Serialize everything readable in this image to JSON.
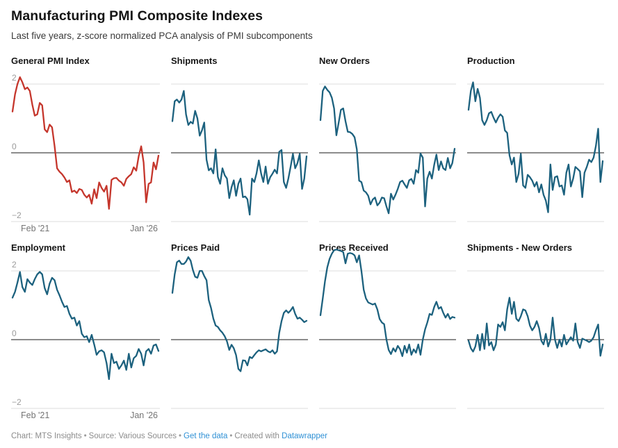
{
  "header": {
    "title": "Manufacturing PMI Composite Indexes",
    "subtitle": "Last five years, z-score normalized PCA analysis of PMI subcomponents"
  },
  "axis": {
    "y_ticks": [
      "2",
      "0",
      "−2"
    ],
    "x_start": "Feb '21",
    "x_end": "Jan '26"
  },
  "colors": {
    "highlight_line": "#c5362c",
    "default_line": "#1c617e",
    "grid_line": "#dcdcdc",
    "zero_line": "#1a1a1a",
    "link": "#2e90d5"
  },
  "footer": {
    "chart_credit": "Chart: MTS Insights",
    "separator": "•",
    "source": "Source: Various Sources",
    "get_data": "Get the data",
    "created_with": "Created with",
    "brand": "Datawrapper"
  },
  "chart_data": [
    {
      "type": "line",
      "title": "General PMI Index",
      "color": "#c5362c",
      "x_start": "Feb '21",
      "x_end": "Jan '26",
      "ylim": [
        -2,
        2
      ],
      "y_gridlines": [
        2,
        0,
        -2
      ],
      "values": [
        1.2,
        1.7,
        2.0,
        2.2,
        2.05,
        1.85,
        1.9,
        1.8,
        1.4,
        1.08,
        1.12,
        1.45,
        1.38,
        0.68,
        0.6,
        0.82,
        0.74,
        0.2,
        -0.45,
        -0.55,
        -0.62,
        -0.72,
        -0.85,
        -0.8,
        -1.14,
        -1.1,
        -1.17,
        -1.05,
        -1.08,
        -1.22,
        -1.3,
        -1.22,
        -1.48,
        -1.06,
        -1.32,
        -0.86,
        -1.02,
        -1.13,
        -0.96,
        -1.63,
        -0.79,
        -0.74,
        -0.73,
        -0.81,
        -0.86,
        -0.96,
        -0.76,
        -0.68,
        -0.62,
        -0.42,
        -0.52,
        -0.1,
        0.19,
        -0.28,
        -1.44,
        -0.9,
        -0.86,
        -0.28,
        -0.48,
        -0.08
      ]
    },
    {
      "type": "line",
      "title": "Shipments",
      "color": "#1c617e",
      "x_start": "Feb '21",
      "x_end": "Jan '26",
      "ylim": [
        -2,
        2
      ],
      "y_gridlines": [
        2,
        0,
        -2
      ],
      "values": [
        0.92,
        1.5,
        1.55,
        1.46,
        1.55,
        1.8,
        1.12,
        0.81,
        0.9,
        0.85,
        1.22,
        1.0,
        0.5,
        0.65,
        0.88,
        -0.2,
        -0.51,
        -0.45,
        -0.6,
        0.1,
        -0.7,
        -0.9,
        -0.45,
        -0.65,
        -0.75,
        -1.32,
        -1.0,
        -0.8,
        -1.25,
        -0.9,
        -0.75,
        -1.29,
        -1.27,
        -1.35,
        -1.8,
        -0.75,
        -0.85,
        -0.6,
        -0.22,
        -0.6,
        -0.85,
        -0.4,
        -0.9,
        -0.71,
        -0.61,
        -0.49,
        -0.6,
        0.03,
        0.08,
        -0.85,
        -1.02,
        -0.75,
        -0.4,
        -0.03,
        -0.45,
        -0.3,
        -0.03,
        -1.05,
        -0.75,
        -0.1
      ]
    },
    {
      "type": "line",
      "title": "New Orders",
      "color": "#1c617e",
      "x_start": "Feb '21",
      "x_end": "Jan '26",
      "ylim": [
        -2,
        2
      ],
      "y_gridlines": [
        2,
        0,
        -2
      ],
      "values": [
        0.95,
        1.8,
        1.93,
        1.83,
        1.76,
        1.6,
        1.29,
        0.51,
        0.88,
        1.25,
        1.29,
        0.92,
        0.61,
        0.6,
        0.55,
        0.45,
        0.1,
        -0.81,
        -0.85,
        -1.1,
        -1.15,
        -1.25,
        -1.5,
        -1.36,
        -1.3,
        -1.53,
        -1.45,
        -1.3,
        -1.32,
        -1.56,
        -1.76,
        -1.19,
        -1.36,
        -1.22,
        -1.05,
        -0.85,
        -0.81,
        -0.92,
        -1.02,
        -0.8,
        -0.76,
        -0.9,
        -0.5,
        -0.58,
        -0.02,
        -0.14,
        -1.56,
        -0.75,
        -0.55,
        -0.75,
        -0.35,
        -0.05,
        -0.5,
        -0.25,
        -0.45,
        -0.5,
        -0.15,
        -0.45,
        -0.3,
        0.12
      ]
    },
    {
      "type": "line",
      "title": "Production",
      "color": "#1c617e",
      "x_start": "Feb '21",
      "x_end": "Jan '26",
      "ylim": [
        -2,
        2
      ],
      "y_gridlines": [
        2,
        0,
        -2
      ],
      "values": [
        1.25,
        1.8,
        2.05,
        1.5,
        1.86,
        1.6,
        0.95,
        0.81,
        0.95,
        1.15,
        1.19,
        1.02,
        0.88,
        1.02,
        1.12,
        1.05,
        0.65,
        0.58,
        -0.07,
        -0.34,
        -0.14,
        -0.85,
        -0.61,
        -0.03,
        -0.95,
        -1.02,
        -0.64,
        -0.71,
        -0.81,
        -0.98,
        -0.85,
        -1.15,
        -0.92,
        -1.22,
        -1.39,
        -1.73,
        -0.34,
        -1.08,
        -0.71,
        -0.68,
        -0.98,
        -0.95,
        -1.22,
        -0.58,
        -0.34,
        -0.98,
        -0.75,
        -0.41,
        -0.47,
        -0.54,
        -1.29,
        -0.58,
        -0.41,
        -0.2,
        -0.27,
        -0.14,
        0.2,
        0.7,
        -0.85,
        -0.24
      ]
    },
    {
      "type": "line",
      "title": "Employment",
      "color": "#1c617e",
      "x_start": "Feb '21",
      "x_end": "Jan '26",
      "ylim": [
        -2,
        2
      ],
      "y_gridlines": [
        2,
        0,
        -2
      ],
      "values": [
        1.22,
        1.39,
        1.66,
        1.97,
        1.53,
        1.39,
        1.76,
        1.66,
        1.59,
        1.76,
        1.9,
        1.97,
        1.9,
        1.5,
        1.32,
        1.63,
        1.8,
        1.73,
        1.45,
        1.29,
        1.1,
        0.95,
        0.98,
        0.75,
        0.61,
        0.64,
        0.41,
        0.54,
        0.17,
        0.07,
        0.1,
        -0.07,
        0.14,
        -0.14,
        -0.44,
        -0.34,
        -0.31,
        -0.37,
        -0.68,
        -1.15,
        -0.41,
        -0.68,
        -0.64,
        -0.85,
        -0.75,
        -0.61,
        -0.88,
        -0.41,
        -0.81,
        -0.54,
        -0.47,
        -0.27,
        -0.41,
        -0.75,
        -0.34,
        -0.27,
        -0.41,
        -0.17,
        -0.14,
        -0.33
      ]
    },
    {
      "type": "line",
      "title": "Prices Paid",
      "color": "#1c617e",
      "x_start": "Feb '21",
      "x_end": "Jan '26",
      "ylim": [
        -2,
        2
      ],
      "y_gridlines": [
        2,
        0,
        -2
      ],
      "values": [
        1.36,
        1.9,
        2.25,
        2.3,
        2.2,
        2.2,
        2.27,
        2.4,
        2.3,
        2.03,
        1.83,
        1.8,
        2.0,
        2.0,
        1.85,
        1.73,
        1.15,
        0.92,
        0.61,
        0.41,
        0.37,
        0.27,
        0.2,
        0.1,
        -0.05,
        -0.3,
        -0.15,
        -0.25,
        -0.45,
        -0.85,
        -0.92,
        -0.6,
        -0.61,
        -0.75,
        -0.5,
        -0.54,
        -0.45,
        -0.37,
        -0.31,
        -0.34,
        -0.31,
        -0.28,
        -0.34,
        -0.37,
        -0.31,
        -0.41,
        -0.34,
        0.2,
        0.54,
        0.78,
        0.85,
        0.78,
        0.85,
        0.95,
        0.75,
        0.61,
        0.64,
        0.58,
        0.51,
        0.55
      ]
    },
    {
      "type": "line",
      "title": "Prices Received",
      "color": "#1c617e",
      "x_start": "Feb '21",
      "x_end": "Jan '26",
      "ylim": [
        -2,
        2
      ],
      "y_gridlines": [
        2,
        0,
        -2
      ],
      "values": [
        0.71,
        1.2,
        1.7,
        2.1,
        2.35,
        2.5,
        2.6,
        2.62,
        2.6,
        2.58,
        2.55,
        2.22,
        2.5,
        2.52,
        2.5,
        2.45,
        2.25,
        2.45,
        2.0,
        1.45,
        1.2,
        1.08,
        1.05,
        1.02,
        1.05,
        0.88,
        0.6,
        0.5,
        0.45,
        0.0,
        -0.3,
        -0.42,
        -0.25,
        -0.35,
        -0.18,
        -0.28,
        -0.48,
        -0.18,
        -0.38,
        -0.14,
        -0.44,
        -0.28,
        -0.38,
        -0.14,
        -0.44,
        0.0,
        0.3,
        0.5,
        0.75,
        0.72,
        0.95,
        1.1,
        0.9,
        0.95,
        0.78,
        0.64,
        0.75,
        0.6,
        0.66,
        0.64
      ]
    },
    {
      "type": "line",
      "title": "Shipments - New Orders",
      "color": "#1c617e",
      "x_start": "Feb '21",
      "x_end": "Jan '26",
      "ylim": [
        -2,
        2
      ],
      "y_gridlines": [
        2,
        0,
        -2
      ],
      "values": [
        -0.03,
        -0.25,
        -0.35,
        -0.2,
        0.14,
        -0.31,
        0.17,
        -0.27,
        0.47,
        -0.17,
        -0.07,
        -0.31,
        -0.14,
        0.44,
        0.37,
        0.51,
        0.27,
        0.88,
        1.22,
        0.75,
        1.1,
        0.61,
        0.54,
        0.68,
        0.88,
        0.85,
        0.68,
        0.41,
        0.27,
        0.37,
        0.54,
        0.34,
        -0.03,
        -0.14,
        0.17,
        -0.2,
        0.0,
        0.64,
        0.0,
        -0.24,
        0.0,
        -0.2,
        0.14,
        -0.14,
        -0.03,
        0.07,
        -0.03,
        0.47,
        -0.07,
        -0.24,
        0.03,
        0.0,
        -0.03,
        -0.07,
        -0.03,
        0.07,
        0.27,
        0.44,
        -0.47,
        -0.14
      ]
    }
  ]
}
